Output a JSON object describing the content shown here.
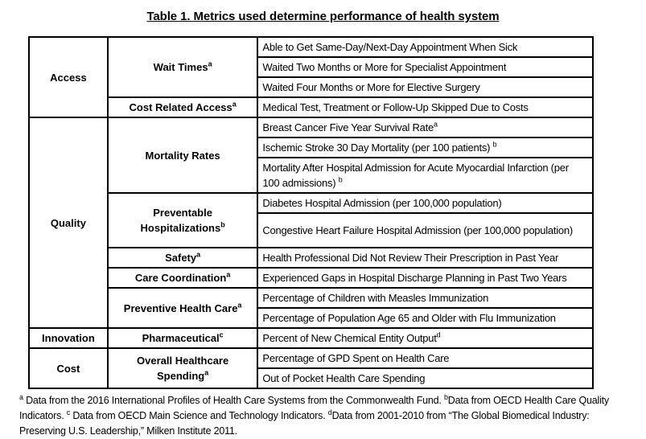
{
  "title": "Table 1. Metrics used determine performance of health system",
  "colors": {
    "background": "#ffffff",
    "border": "#000000",
    "text": "#000000"
  },
  "table": {
    "categories": [
      {
        "label": "Access"
      },
      {
        "label": "Quality"
      },
      {
        "label": "Innovation"
      },
      {
        "label": "Cost"
      }
    ],
    "subcategories": [
      {
        "label": "Wait Times",
        "sup": "a"
      },
      {
        "label": "Cost Related Access",
        "sup": "a"
      },
      {
        "label": "Mortality Rates",
        "sup": ""
      },
      {
        "label": "Preventable Hospitalizations",
        "sup": "b"
      },
      {
        "label": "Safety",
        "sup": "a"
      },
      {
        "label": "Care Coordination",
        "sup": "a"
      },
      {
        "label": "Preventive Health Care",
        "sup": "a"
      },
      {
        "label": "Pharmaceutical",
        "sup": "c"
      },
      {
        "label": "Overall Healthcare Spending",
        "sup": "a"
      }
    ],
    "metrics": [
      {
        "text": "Able to Get Same-Day/Next-Day Appointment When Sick",
        "sup": ""
      },
      {
        "text": "Waited Two Months or More for Specialist Appointment",
        "sup": ""
      },
      {
        "text": "Waited Four Months or More for Elective Surgery",
        "sup": ""
      },
      {
        "text": "Medical Test, Treatment or Follow-Up Skipped Due to Costs",
        "sup": ""
      },
      {
        "text": "Breast Cancer Five Year Survival Rate",
        "sup": "a"
      },
      {
        "text": "Ischemic Stroke 30 Day Mortality (per 100 patients) ",
        "sup": "b"
      },
      {
        "text": "Mortality After Hospital Admission for Acute Myocardial Infarction (per 100 admissions) ",
        "sup": "b"
      },
      {
        "text": "Diabetes Hospital Admission (per 100,000 population)",
        "sup": ""
      },
      {
        "text": "Congestive Heart Failure Hospital Admission (per 100,000 population)",
        "sup": ""
      },
      {
        "text": "Health Professional Did Not Review Their Prescription in Past Year",
        "sup": ""
      },
      {
        "text": "Experienced Gaps in Hospital Discharge Planning in Past Two Years",
        "sup": ""
      },
      {
        "text": "Percentage of Children with Measles Immunization",
        "sup": ""
      },
      {
        "text": "Percentage of Population Age 65 and Older with Flu Immunization",
        "sup": ""
      },
      {
        "text": "Percent of New Chemical Entity Output",
        "sup": "d"
      },
      {
        "text": "Percentage of GPD Spent on Health Care",
        "sup": ""
      },
      {
        "text": "Out of Pocket Health Care Spending",
        "sup": ""
      }
    ]
  },
  "footnote": {
    "segments": [
      {
        "sup": "a",
        "text": " Data from the 2016 International Profiles of Health Care Systems from the Commonwealth Fund. "
      },
      {
        "sup": "b",
        "text": "Data from OECD Health Care Quality Indicators. "
      },
      {
        "sup": "c",
        "text": " Data from OECD Main Science and Technology Indicators. "
      },
      {
        "sup": "d",
        "text": "Data from 2001-2010 from “The Global Biomedical Industry: Preserving U.S. Leadership,” Milken Institute 2011."
      }
    ]
  }
}
